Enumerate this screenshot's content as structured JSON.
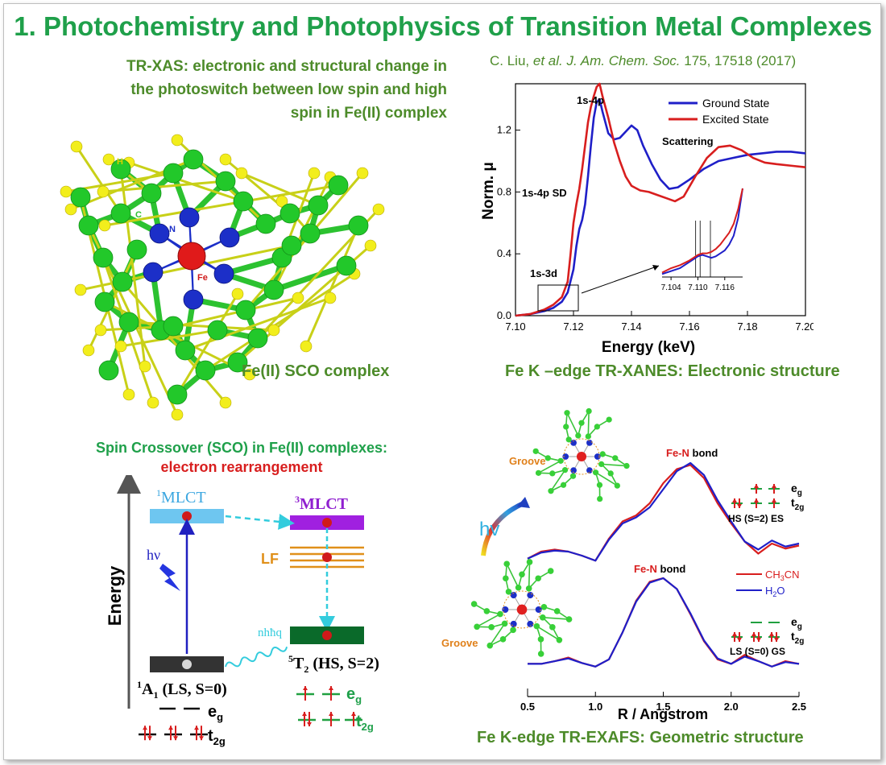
{
  "header": {
    "title": "1. Photochemistry and Photophysics of Transition Metal Complexes",
    "tr_xas_lines": [
      "TR-XAS:  electronic and structural change  in",
      "the photoswitch between low spin and high",
      "spin in Fe(II) complex"
    ],
    "citation_pre": "C. Liu, ",
    "citation_italic": "et al. J. Am. Chem. Soc.",
    "citation_post": " 175, 17518 (2017)"
  },
  "molecule": {
    "caption": "Fe(II) SCO complex",
    "labels": {
      "h": "H",
      "c": "C",
      "n": "N",
      "fe": "Fe"
    },
    "colors": {
      "carbon": "#22c82a",
      "hydrogen": "#f2ee1c",
      "nitrogen": "#1c2fc8",
      "iron": "#e01a1a"
    }
  },
  "xanes": {
    "caption": "Fe K –edge TR-XANES: Electronic structure",
    "annotations": {
      "peak": "1s-4p",
      "sd": "1s-4p SD",
      "pre": "1s-3d",
      "scattering": "Scattering"
    }
  },
  "exafs": {
    "caption": "Fe K-edge TR-EXAFS: Geometric structure",
    "labels": {
      "groove": "Groove",
      "fe_n": "Fe-N",
      "bond": " bond",
      "hv": "hv",
      "fe": "Fe",
      "n": "N",
      "n_prime": "N'"
    },
    "es_state": "HS (S=2) ES",
    "gs_state": "LS (S=0) GS",
    "eg": "e",
    "eg_sub": "g",
    "t2g": "t",
    "t2g_sub": "2g"
  },
  "sco": {
    "title": "Spin Crossover (SCO) in Fe(II) complexes:",
    "subtitle": "electron rearrangement",
    "energy_label": "Energy",
    "mlct1_sup": "1",
    "mlct1": "MLCT",
    "mlct3_sup": "3",
    "mlct3": "MLCT",
    "lf": "LF",
    "hv": "hν",
    "nhq": "nhħq",
    "a1_sup": "1",
    "a1": "A",
    "a1_sub": "1",
    "a1_rest": " (LS, S=0)",
    "t2_sup": "5",
    "t2": "T",
    "t2_sub": "2",
    "t2_rest": " (HS, S=2)",
    "eg": "e",
    "eg_sub": "g",
    "t2g": "t",
    "t2g_sub": "2g"
  },
  "chart_data": [
    {
      "type": "line",
      "title": "",
      "xlabel": "Energy (keV)",
      "ylabel": "Norm. μ",
      "xlim": [
        7.1,
        7.2
      ],
      "ylim": [
        0.0,
        1.5
      ],
      "x_ticks": [
        "7.10",
        "7.12",
        "7.14",
        "7.16",
        "7.18",
        "7.20"
      ],
      "y_ticks": [
        "0.0",
        "0.4",
        "0.8",
        "1.2"
      ],
      "legend_position": "top-right",
      "series": [
        {
          "name": "Ground State",
          "color": "#1f1fc8",
          "x": [
            7.1,
            7.105,
            7.11,
            7.113,
            7.116,
            7.118,
            7.12,
            7.121,
            7.122,
            7.123,
            7.124,
            7.125,
            7.126,
            7.127,
            7.128,
            7.129,
            7.13,
            7.132,
            7.134,
            7.136,
            7.138,
            7.14,
            7.142,
            7.144,
            7.147,
            7.15,
            7.153,
            7.156,
            7.16,
            7.165,
            7.17,
            7.175,
            7.18,
            7.185,
            7.19,
            7.195,
            7.2
          ],
          "y": [
            0.0,
            0.01,
            0.03,
            0.05,
            0.09,
            0.15,
            0.3,
            0.45,
            0.56,
            0.62,
            0.72,
            0.9,
            1.1,
            1.28,
            1.38,
            1.4,
            1.32,
            1.18,
            1.14,
            1.15,
            1.19,
            1.23,
            1.2,
            1.1,
            0.98,
            0.88,
            0.82,
            0.83,
            0.88,
            0.95,
            1.0,
            1.02,
            1.04,
            1.05,
            1.06,
            1.06,
            1.05
          ]
        },
        {
          "name": "Excited State",
          "color": "#d81e1e",
          "x": [
            7.1,
            7.105,
            7.11,
            7.113,
            7.116,
            7.118,
            7.119,
            7.12,
            7.121,
            7.122,
            7.123,
            7.124,
            7.125,
            7.126,
            7.127,
            7.128,
            7.129,
            7.13,
            7.132,
            7.134,
            7.136,
            7.138,
            7.14,
            7.143,
            7.146,
            7.149,
            7.152,
            7.155,
            7.158,
            7.162,
            7.166,
            7.17,
            7.174,
            7.178,
            7.182,
            7.186,
            7.19,
            7.195,
            7.2
          ],
          "y": [
            0.0,
            0.01,
            0.04,
            0.07,
            0.12,
            0.22,
            0.4,
            0.6,
            0.72,
            0.82,
            0.95,
            1.1,
            1.25,
            1.35,
            1.42,
            1.48,
            1.5,
            1.42,
            1.28,
            1.12,
            1.0,
            0.9,
            0.84,
            0.81,
            0.8,
            0.78,
            0.76,
            0.74,
            0.77,
            0.9,
            1.02,
            1.09,
            1.1,
            1.07,
            1.02,
            0.99,
            0.98,
            0.97,
            0.96
          ]
        }
      ],
      "inset": {
        "x_ticks": [
          "7.104",
          "7.110",
          "7.116"
        ],
        "xlim": [
          7.102,
          7.12
        ],
        "ylim": [
          0.0,
          0.3
        ],
        "series": [
          {
            "name": "Ground State",
            "x": [
              7.102,
              7.104,
              7.106,
              7.108,
              7.109,
              7.11,
              7.111,
              7.112,
              7.113,
              7.114,
              7.115,
              7.116,
              7.117,
              7.118,
              7.119,
              7.12
            ],
            "y": [
              0.01,
              0.02,
              0.03,
              0.05,
              0.06,
              0.07,
              0.075,
              0.07,
              0.065,
              0.07,
              0.08,
              0.09,
              0.11,
              0.14,
              0.2,
              0.3
            ]
          },
          {
            "name": "Excited State",
            "x": [
              7.102,
              7.104,
              7.106,
              7.108,
              7.109,
              7.11,
              7.111,
              7.112,
              7.113,
              7.114,
              7.115,
              7.116,
              7.117,
              7.118,
              7.119,
              7.12
            ],
            "y": [
              0.015,
              0.03,
              0.04,
              0.055,
              0.065,
              0.075,
              0.08,
              0.08,
              0.085,
              0.095,
              0.11,
              0.13,
              0.15,
              0.18,
              0.23,
              0.3
            ]
          }
        ]
      }
    },
    {
      "type": "line",
      "title": "",
      "xlabel": "R / Angstrom",
      "ylabel": "",
      "xlim": [
        0.5,
        2.5
      ],
      "x_ticks": [
        "0.5",
        "1.0",
        "1.5",
        "2.0",
        "2.5"
      ],
      "legend_position": "right",
      "legend": [
        {
          "name": "CH",
          "sub1": "3",
          "name2": "CN",
          "color": "#d81e1e"
        },
        {
          "name": "H",
          "sub1": "2",
          "name2": "O",
          "color": "#1f1fc8"
        }
      ],
      "upper_series": [
        {
          "name": "CH3CN",
          "color": "#d81e1e",
          "x": [
            0.5,
            0.6,
            0.7,
            0.8,
            0.9,
            1.0,
            1.1,
            1.2,
            1.3,
            1.4,
            1.5,
            1.6,
            1.7,
            1.8,
            1.9,
            2.0,
            2.1,
            2.2,
            2.3,
            2.4,
            2.5
          ],
          "y": [
            0.05,
            0.12,
            0.14,
            0.12,
            0.08,
            0.03,
            0.25,
            0.42,
            0.48,
            0.6,
            0.8,
            0.94,
            0.98,
            0.85,
            0.6,
            0.4,
            0.22,
            0.1,
            0.2,
            0.15,
            0.18
          ]
        },
        {
          "name": "H2O",
          "color": "#1f1fc8",
          "x": [
            0.5,
            0.6,
            0.7,
            0.8,
            0.9,
            1.0,
            1.1,
            1.2,
            1.3,
            1.4,
            1.5,
            1.6,
            1.7,
            1.8,
            1.9,
            2.0,
            2.1,
            2.2,
            2.3,
            2.4,
            2.5
          ],
          "y": [
            0.05,
            0.11,
            0.13,
            0.12,
            0.08,
            0.03,
            0.24,
            0.4,
            0.46,
            0.56,
            0.74,
            0.92,
            1.0,
            0.88,
            0.63,
            0.42,
            0.22,
            0.14,
            0.23,
            0.17,
            0.2
          ]
        }
      ],
      "lower_series": [
        {
          "name": "CH3CN",
          "color": "#d81e1e",
          "x": [
            0.5,
            0.6,
            0.7,
            0.8,
            0.9,
            1.0,
            1.1,
            1.2,
            1.3,
            1.4,
            1.5,
            1.6,
            1.7,
            1.8,
            1.9,
            2.0,
            2.1,
            2.2,
            2.3,
            2.4,
            2.5
          ],
          "y": [
            0.05,
            0.05,
            0.08,
            0.12,
            0.06,
            0.02,
            0.1,
            0.4,
            0.75,
            0.96,
            1.0,
            0.88,
            0.6,
            0.3,
            0.1,
            0.05,
            0.15,
            0.08,
            0.02,
            0.08,
            0.05
          ]
        },
        {
          "name": "H2O",
          "color": "#1f1fc8",
          "x": [
            0.5,
            0.6,
            0.7,
            0.8,
            0.9,
            1.0,
            1.1,
            1.2,
            1.3,
            1.4,
            1.5,
            1.6,
            1.7,
            1.8,
            1.9,
            2.0,
            2.1,
            2.2,
            2.3,
            2.4,
            2.5
          ],
          "y": [
            0.05,
            0.05,
            0.08,
            0.11,
            0.06,
            0.02,
            0.1,
            0.4,
            0.74,
            0.95,
            1.0,
            0.88,
            0.61,
            0.31,
            0.11,
            0.05,
            0.13,
            0.08,
            0.02,
            0.07,
            0.05
          ]
        }
      ]
    }
  ]
}
